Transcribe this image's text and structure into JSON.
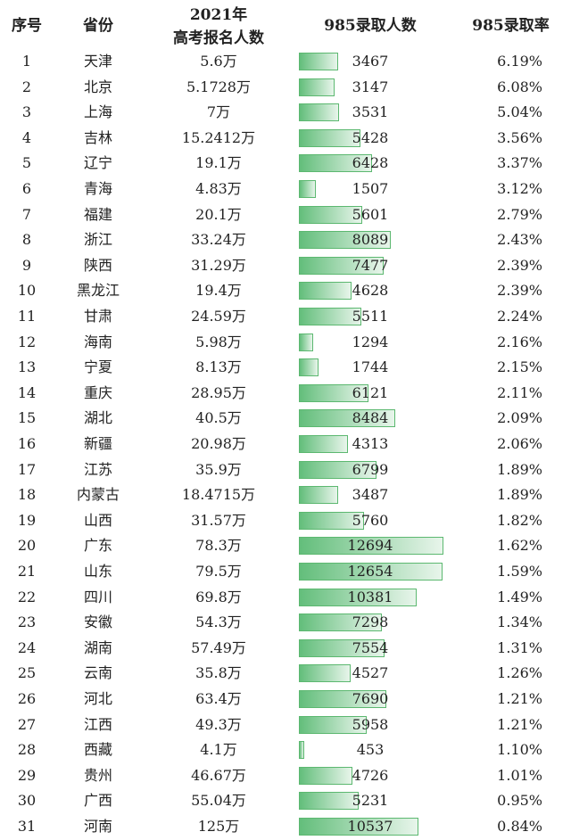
{
  "table": {
    "header": {
      "index": "序号",
      "province": "省份",
      "applicants_year": "2021年",
      "applicants": "高考报名人数",
      "admitted": "985录取人数",
      "rate": "985录取率"
    },
    "rows": [
      [
        1,
        "天津",
        "5.6万",
        3467,
        "6.19%"
      ],
      [
        2,
        "北京",
        "5.1728万",
        3147,
        "6.08%"
      ],
      [
        3,
        "上海",
        "7万",
        3531,
        "5.04%"
      ],
      [
        4,
        "吉林",
        "15.2412万",
        5428,
        "3.56%"
      ],
      [
        5,
        "辽宁",
        "19.1万",
        6428,
        "3.37%"
      ],
      [
        6,
        "青海",
        "4.83万",
        1507,
        "3.12%"
      ],
      [
        7,
        "福建",
        "20.1万",
        5601,
        "2.79%"
      ],
      [
        8,
        "浙江",
        "33.24万",
        8089,
        "2.43%"
      ],
      [
        9,
        "陕西",
        "31.29万",
        7477,
        "2.39%"
      ],
      [
        10,
        "黑龙江",
        "19.4万",
        4628,
        "2.39%"
      ],
      [
        11,
        "甘肃",
        "24.59万",
        5511,
        "2.24%"
      ],
      [
        12,
        "海南",
        "5.98万",
        1294,
        "2.16%"
      ],
      [
        13,
        "宁夏",
        "8.13万",
        1744,
        "2.15%"
      ],
      [
        14,
        "重庆",
        "28.95万",
        6121,
        "2.11%"
      ],
      [
        15,
        "湖北",
        "40.5万",
        8484,
        "2.09%"
      ],
      [
        16,
        "新疆",
        "20.98万",
        4313,
        "2.06%"
      ],
      [
        17,
        "江苏",
        "35.9万",
        6799,
        "1.89%"
      ],
      [
        18,
        "内蒙古",
        "18.4715万",
        3487,
        "1.89%"
      ],
      [
        19,
        "山西",
        "31.57万",
        5760,
        "1.82%"
      ],
      [
        20,
        "广东",
        "78.3万",
        12694,
        "1.62%"
      ],
      [
        21,
        "山东",
        "79.5万",
        12654,
        "1.59%"
      ],
      [
        22,
        "四川",
        "69.8万",
        10381,
        "1.49%"
      ],
      [
        23,
        "安徽",
        "54.3万",
        7298,
        "1.34%"
      ],
      [
        24,
        "湖南",
        "57.49万",
        7554,
        "1.31%"
      ],
      [
        25,
        "云南",
        "35.8万",
        4527,
        "1.26%"
      ],
      [
        26,
        "河北",
        "63.4万",
        7690,
        "1.21%"
      ],
      [
        27,
        "江西",
        "49.3万",
        5958,
        "1.21%"
      ],
      [
        28,
        "西藏",
        "4.1万",
        453,
        "1.10%"
      ],
      [
        29,
        "贵州",
        "46.67万",
        4726,
        "1.01%"
      ],
      [
        30,
        "广西",
        "55.04万",
        5231,
        "0.95%"
      ],
      [
        31,
        "河南",
        "125万",
        10537,
        "0.84%"
      ]
    ]
  }
}
